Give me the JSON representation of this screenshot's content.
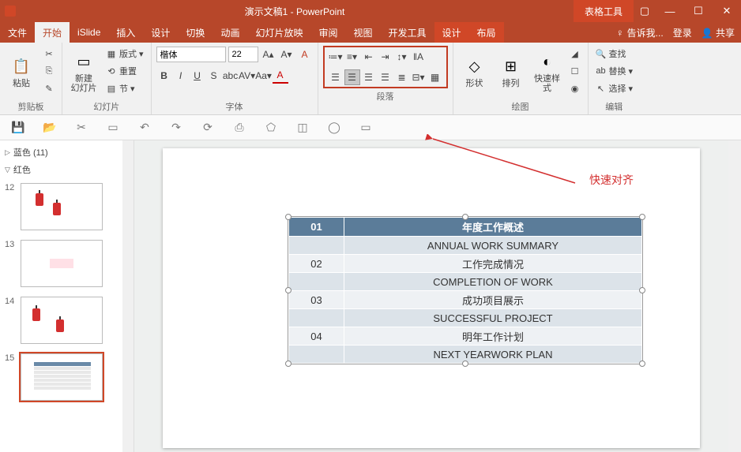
{
  "title": "演示文稿1 - PowerPoint",
  "tableTool": "表格工具",
  "winBtns": {
    "box": "▢",
    "min": "—",
    "max": "☐",
    "close": "✕"
  },
  "tabs": {
    "file": "文件",
    "home": "开始",
    "islide": "iSlide",
    "insert": "插入",
    "design": "设计",
    "transition": "切换",
    "anim": "动画",
    "slideshow": "幻灯片放映",
    "review": "审阅",
    "view": "视图",
    "dev": "开发工具",
    "tdesign": "设计",
    "tlayout": "布局",
    "tell": "告诉我...",
    "login": "登录",
    "share": "共享"
  },
  "groups": {
    "clipboard": "剪贴板",
    "slides": "幻灯片",
    "font": "字体",
    "paragraph": "段落",
    "drawing": "绘图",
    "editing": "编辑"
  },
  "btns": {
    "paste": "粘贴",
    "newslide": "新建\n幻灯片",
    "layout": "版式",
    "reset": "重置",
    "section": "节",
    "shape": "形状",
    "arrange": "排列",
    "quickstyle": "快速样式",
    "find": "查找",
    "replace": "替换",
    "select": "选择"
  },
  "fontName": "楷体",
  "fontSize": "22",
  "sections": {
    "blue": "蓝色 (11)",
    "red": "红色"
  },
  "slideNums": [
    "12",
    "13",
    "14",
    "15"
  ],
  "callout": "快速对齐",
  "tableHead": {
    "c1": "01",
    "c2": "年度工作概述"
  },
  "rows": [
    {
      "c1": "",
      "c2": "ANNUAL WORK SUMMARY",
      "cls": "odd"
    },
    {
      "c1": "02",
      "c2": "工作完成情况",
      "cls": "even"
    },
    {
      "c1": "",
      "c2": "COMPLETION OF WORK",
      "cls": "odd"
    },
    {
      "c1": "03",
      "c2": "成功项目展示",
      "cls": "even"
    },
    {
      "c1": "",
      "c2": "SUCCESSFUL PROJECT",
      "cls": "odd"
    },
    {
      "c1": "04",
      "c2": "明年工作计划",
      "cls": "even"
    },
    {
      "c1": "",
      "c2": "NEXT YEARWORK PLAN",
      "cls": "odd"
    }
  ],
  "colors": {
    "brand": "#b7472a",
    "tool": "#d04727",
    "th": "#5b7c99"
  }
}
